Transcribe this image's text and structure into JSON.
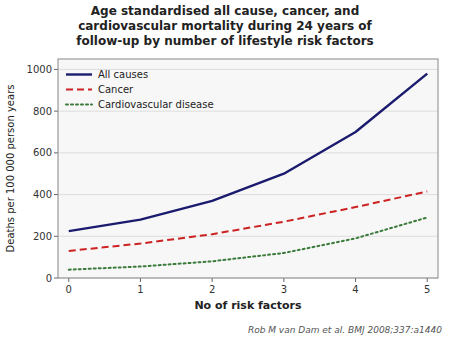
{
  "chart_data": {
    "type": "line",
    "title": "Age standardised all cause, cancer, and\ncardiovascular mortality during 24 years of\nfollow-up by number of lifestyle risk factors",
    "xlabel": "No of risk factors",
    "ylabel": "Deaths per 100 000 person years",
    "x": [
      0,
      1,
      2,
      3,
      4,
      5
    ],
    "series": [
      {
        "name": "All causes",
        "color": "#1a1a6e",
        "line_style": "solid",
        "values": [
          225,
          280,
          370,
          500,
          700,
          980
        ]
      },
      {
        "name": "Cancer",
        "color": "#cc2222",
        "line_style": "dashed",
        "values": [
          130,
          165,
          210,
          270,
          340,
          415
        ]
      },
      {
        "name": "Cardiovascular disease",
        "color": "#3a7a3a",
        "line_style": "dotted",
        "values": [
          40,
          55,
          80,
          120,
          190,
          290
        ]
      }
    ],
    "xlim": [
      -0.15,
      5.15
    ],
    "xticks": [
      0,
      1,
      2,
      3,
      4,
      5
    ],
    "ylim": [
      0,
      1050
    ],
    "yticks": [
      0,
      200,
      400,
      600,
      800,
      1000
    ],
    "grid": true,
    "legend": "upper left",
    "annotations": [
      "Rob M van Dam et al. BMJ 2008;337:a1440"
    ]
  }
}
